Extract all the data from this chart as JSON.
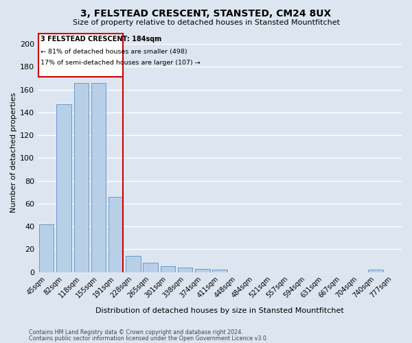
{
  "title": "3, FELSTEAD CRESCENT, STANSTED, CM24 8UX",
  "subtitle": "Size of property relative to detached houses in Stansted Mountfitchet",
  "xlabel": "Distribution of detached houses by size in Stansted Mountfitchet",
  "ylabel": "Number of detached properties",
  "categories": [
    "45sqm",
    "82sqm",
    "118sqm",
    "155sqm",
    "191sqm",
    "228sqm",
    "265sqm",
    "301sqm",
    "338sqm",
    "374sqm",
    "411sqm",
    "448sqm",
    "484sqm",
    "521sqm",
    "557sqm",
    "594sqm",
    "631sqm",
    "667sqm",
    "704sqm",
    "740sqm",
    "777sqm"
  ],
  "values": [
    42,
    147,
    166,
    166,
    66,
    14,
    8,
    5,
    4,
    3,
    2,
    0,
    0,
    0,
    0,
    0,
    0,
    0,
    0,
    2,
    0
  ],
  "bar_color": "#b8cfe8",
  "bar_edge_color": "#6699cc",
  "background_color": "#dde6f0",
  "grid_color": "#ffffff",
  "vline_x": 4.42,
  "vline_color": "#cc0000",
  "annotation_title": "3 FELSTEAD CRESCENT: 184sqm",
  "annotation_line1": "← 81% of detached houses are smaller (498)",
  "annotation_line2": "17% of semi-detached houses are larger (107) →",
  "annotation_box_color": "#cc0000",
  "footnote1": "Contains HM Land Registry data © Crown copyright and database right 2024.",
  "footnote2": "Contains public sector information licensed under the Open Government Licence v3.0.",
  "ylim": [
    0,
    210
  ],
  "yticks": [
    0,
    20,
    40,
    60,
    80,
    100,
    120,
    140,
    160,
    180,
    200
  ]
}
